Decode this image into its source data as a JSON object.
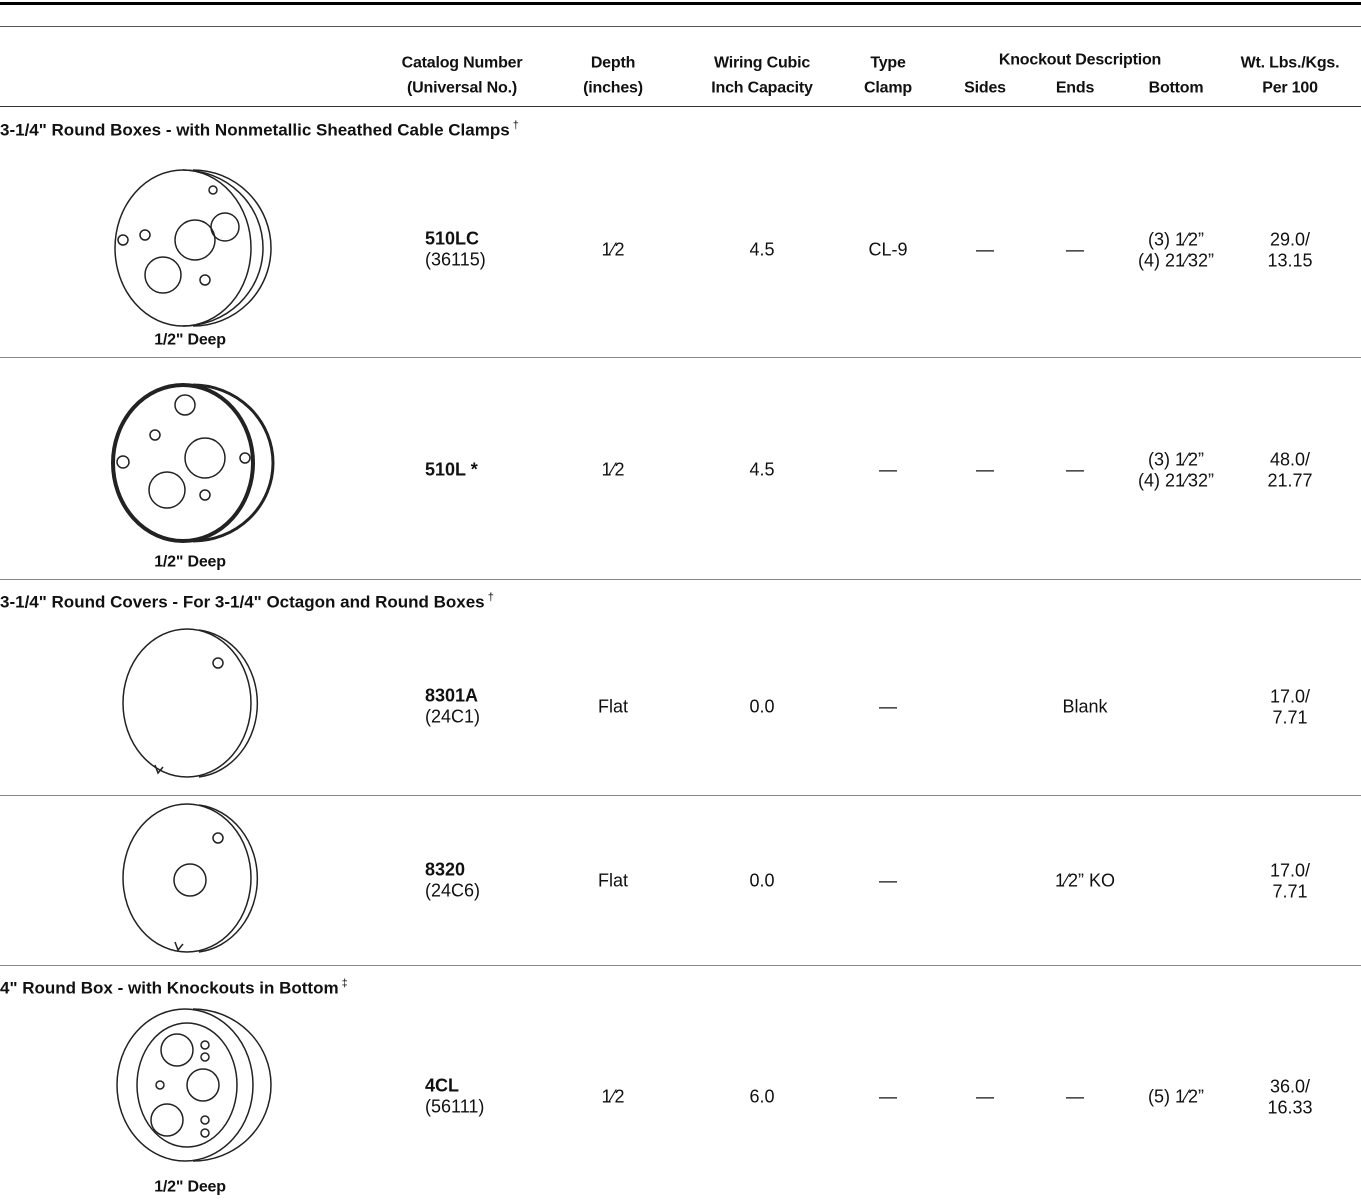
{
  "header": {
    "columns": [
      {
        "lines": [
          "Catalog Number",
          "(Universal No.)"
        ]
      },
      {
        "lines": [
          "Depth",
          "(inches)"
        ]
      },
      {
        "lines": [
          "Wiring Cubic",
          "Inch Capacity"
        ]
      },
      {
        "lines": [
          "Type",
          "Clamp"
        ]
      },
      {
        "lines": [
          "Sides"
        ]
      },
      {
        "lines": [
          "Ends"
        ]
      },
      {
        "lines": [
          "Bottom"
        ]
      },
      {
        "lines": [
          "Wt. Lbs./Kgs.",
          "Per 100"
        ]
      }
    ],
    "group": "Knockout Description"
  },
  "sections": [
    {
      "title": "3-1/4\" Round Boxes - with Nonmetallic Sheathed Cable Clamps",
      "mark": "†",
      "rows": [
        {
          "catalog": "510LC",
          "universal": "(36115)",
          "depth": "1⁄2",
          "capacity": "4.5",
          "clamp": "CL-9",
          "sides": "—",
          "ends": "—",
          "bottom": [
            "(3) 1⁄2”",
            "(4) 21⁄32”"
          ],
          "weight": [
            "29.0/",
            "13.15"
          ],
          "caption": "1/2\" Deep"
        },
        {
          "catalog": "510L *",
          "depth": "1⁄2",
          "capacity": "4.5",
          "clamp": "—",
          "sides": "—",
          "ends": "—",
          "bottom": [
            "(3) 1⁄2”",
            "(4) 21⁄32”"
          ],
          "weight": [
            "48.0/",
            "21.77"
          ],
          "caption": "1/2\" Deep"
        }
      ]
    },
    {
      "title": "3-1/4\" Round Covers - For 3-1/4\" Octagon and Round Boxes",
      "mark": "†",
      "rows": [
        {
          "catalog": "8301A",
          "universal": "(24C1)",
          "depth": "Flat",
          "capacity": "0.0",
          "clamp": "—",
          "knockout": "Blank",
          "weight": [
            "17.0/",
            "7.71"
          ]
        },
        {
          "catalog": "8320",
          "universal": "(24C6)",
          "depth": "Flat",
          "capacity": "0.0",
          "clamp": "—",
          "knockout": "1⁄2” KO",
          "weight": [
            "17.0/",
            "7.71"
          ]
        }
      ]
    },
    {
      "title": "4\" Round Box - with Knockouts in Bottom",
      "mark": "‡",
      "rows": [
        {
          "catalog": "4CL",
          "universal": "(56111)",
          "depth": "1⁄2",
          "capacity": "6.0",
          "clamp": "—",
          "sides": "—",
          "ends": "—",
          "bottom": [
            "(5) 1⁄2”"
          ],
          "weight": [
            "36.0/",
            "16.33"
          ],
          "caption": "1/2\" Deep"
        }
      ]
    }
  ]
}
